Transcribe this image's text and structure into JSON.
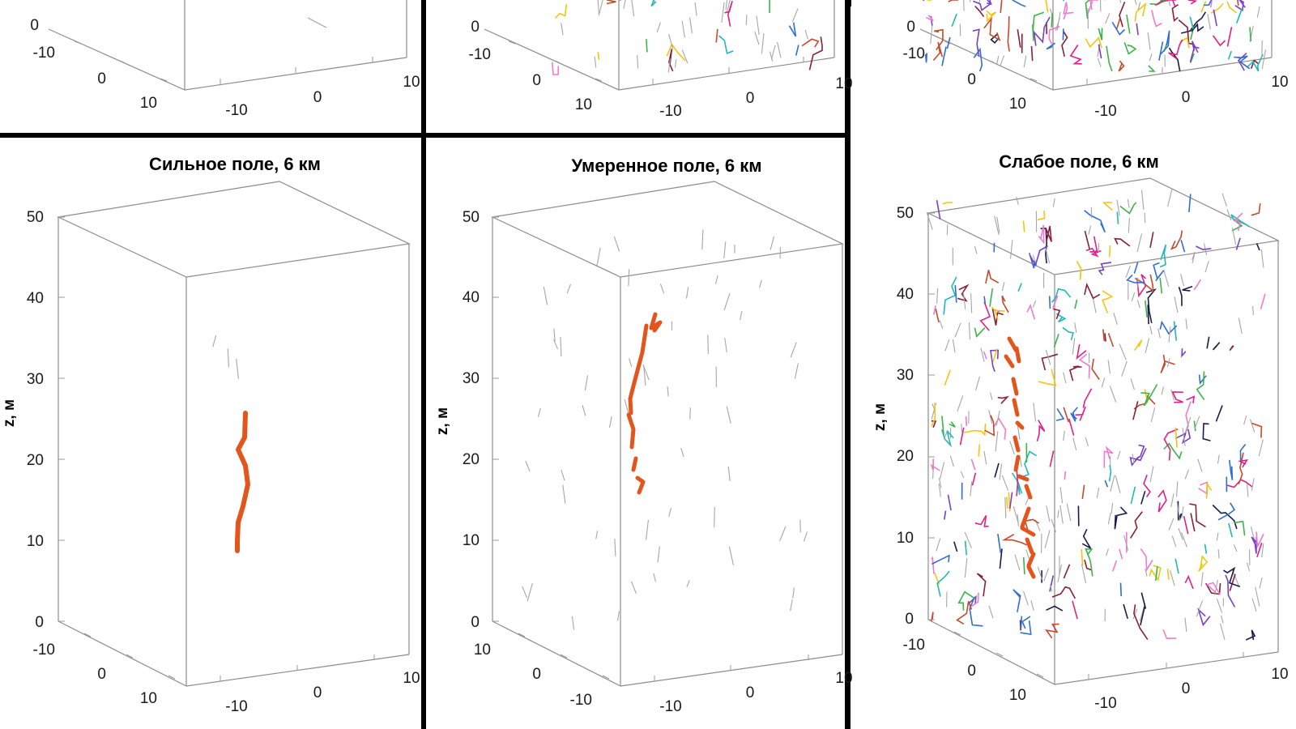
{
  "chart_data": [
    {
      "id": "top-left",
      "type": "scatter",
      "title": "",
      "zlabel": "",
      "z_ticks": [
        "0"
      ],
      "x_ticks": [
        "-10",
        "0",
        "10"
      ],
      "y_ticks": [
        "-10",
        "0",
        "10"
      ],
      "xlim": [
        -10,
        10
      ],
      "ylim": [
        -10,
        10
      ],
      "channel": "none",
      "density": "very sparse",
      "colored_segments": false
    },
    {
      "id": "top-middle",
      "type": "scatter",
      "title": "",
      "zlabel": "",
      "z_ticks": [
        "0"
      ],
      "x_ticks": [
        "-10",
        "0",
        "10"
      ],
      "y_ticks": [
        "-10",
        "0",
        "10"
      ],
      "xlim": [
        -10,
        10
      ],
      "ylim": [
        -10,
        10
      ],
      "channel": "none",
      "density": "moderate",
      "colored_segments": true
    },
    {
      "id": "top-right",
      "type": "scatter",
      "title": "",
      "zlabel": "",
      "z_ticks": [
        "0"
      ],
      "x_ticks": [
        "-10",
        "0",
        "10"
      ],
      "y_ticks": [
        "-10",
        "0",
        "10"
      ],
      "xlim": [
        -10,
        10
      ],
      "ylim": [
        -10,
        10
      ],
      "channel": "none",
      "density": "dense",
      "colored_segments": true
    },
    {
      "id": "bottom-left",
      "type": "line",
      "title": "Сильное поле, 6 км",
      "zlabel": "z, м",
      "z_ticks": [
        "0",
        "10",
        "20",
        "30",
        "40",
        "50"
      ],
      "x_ticks": [
        "-10",
        "0",
        "10"
      ],
      "y_ticks": [
        "-10",
        "0",
        "10"
      ],
      "xlim": [
        -10,
        10
      ],
      "ylim": [
        -10,
        10
      ],
      "zlim": [
        0,
        50
      ],
      "channel": "continuous",
      "channel_z_range": [
        8,
        25
      ],
      "density": "very sparse",
      "colored_segments": false
    },
    {
      "id": "bottom-middle",
      "type": "line",
      "title": "Умеренное поле, 6 км",
      "zlabel": "z, м",
      "z_ticks": [
        "0",
        "10",
        "20",
        "30",
        "40",
        "50"
      ],
      "x_ticks": [
        "-10",
        "0",
        "10"
      ],
      "y_ticks": [
        "-10",
        "0",
        "10"
      ],
      "xlim": [
        -10,
        10
      ],
      "ylim": [
        -10,
        10
      ],
      "zlim": [
        0,
        50
      ],
      "channel": "broken",
      "channel_z_range": [
        16,
        37
      ],
      "density": "sparse",
      "colored_segments": false
    },
    {
      "id": "bottom-right",
      "type": "line",
      "title": "Слабое поле, 6 км",
      "zlabel": "z, м",
      "z_ticks": [
        "0",
        "10",
        "20",
        "30",
        "40",
        "50"
      ],
      "x_ticks": [
        "-10",
        "0",
        "10"
      ],
      "y_ticks": [
        "-10",
        "0",
        "10"
      ],
      "xlim": [
        -10,
        10
      ],
      "ylim": [
        -10,
        10
      ],
      "zlim": [
        0,
        50
      ],
      "channel": "fragmented",
      "channel_z_range": [
        4,
        34
      ],
      "density": "dense",
      "colored_segments": true
    }
  ],
  "colors": {
    "channel": "#e4551c",
    "gray_segment": "#a6a6a6",
    "frame": "#8c8c8c",
    "divider": "#000000",
    "palette": [
      "#7b3fc4",
      "#20b8b8",
      "#e0208a",
      "#3cb44b",
      "#f2c511",
      "#8a1f3c",
      "#2e6fd1",
      "#1b1b4a",
      "#c44a2a",
      "#f07ad1"
    ]
  }
}
